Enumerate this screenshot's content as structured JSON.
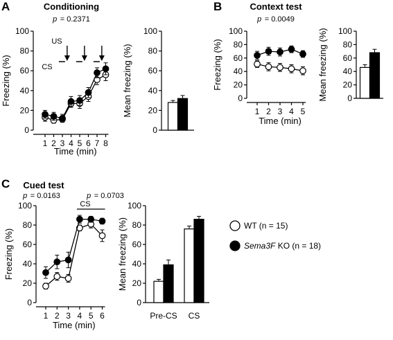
{
  "legend": {
    "wt": "WT (n = 15)",
    "ko_gene": "Sema3F",
    "ko_rest": " KO (n = 18)"
  },
  "series_colors": {
    "wt": "#ffffff",
    "ko": "#000000"
  },
  "chart_data": [
    {
      "panel": "A",
      "title": "Conditioning",
      "type": "line",
      "p_values": [
        {
          "label": "p",
          "value": "= 0.2371"
        }
      ],
      "x": [
        1,
        2,
        3,
        4,
        5,
        6,
        7,
        8
      ],
      "xlabel": "Time (min)",
      "ylabel": "Freezing (%)",
      "ylim": [
        0,
        100
      ],
      "yticks": [
        0,
        20,
        40,
        60,
        80,
        100
      ],
      "annotations": {
        "us": "US",
        "cs": "CS",
        "us_minutes": [
          3,
          5,
          7
        ]
      },
      "series": [
        {
          "name": "WT",
          "values": [
            13,
            10,
            11,
            27,
            27,
            34,
            51,
            56
          ],
          "errors": [
            4,
            3,
            3,
            4,
            5,
            5,
            5,
            6
          ]
        },
        {
          "name": "Sema3F KO",
          "values": [
            16,
            14,
            12,
            29,
            30,
            38,
            58,
            62
          ],
          "errors": [
            4,
            4,
            4,
            5,
            5,
            5,
            5,
            6
          ]
        }
      ]
    },
    {
      "panel": "A-bar",
      "type": "bar",
      "ylabel": "Mean freezing (%)",
      "ylim": [
        0,
        100
      ],
      "yticks": [
        0,
        20,
        40,
        60,
        80,
        100
      ],
      "categories": [
        ""
      ],
      "series": [
        {
          "name": "WT",
          "values": [
            28
          ],
          "errors": [
            2
          ]
        },
        {
          "name": "Sema3F KO",
          "values": [
            32
          ],
          "errors": [
            3
          ]
        }
      ]
    },
    {
      "panel": "B",
      "title": "Context test",
      "type": "line",
      "p_values": [
        {
          "label": "p",
          "value": "= 0.0049"
        }
      ],
      "x": [
        1,
        2,
        3,
        4,
        5
      ],
      "xlabel": "Time (min)",
      "ylabel": "Freezing (%)",
      "ylim": [
        0,
        100
      ],
      "yticks": [
        0,
        20,
        40,
        60,
        80,
        100
      ],
      "series": [
        {
          "name": "WT",
          "values": [
            51,
            47,
            46,
            44,
            41
          ],
          "errors": [
            5,
            6,
            6,
            6,
            6
          ]
        },
        {
          "name": "Sema3F KO",
          "values": [
            64,
            70,
            69,
            73,
            66
          ],
          "errors": [
            6,
            6,
            6,
            5,
            5
          ]
        }
      ]
    },
    {
      "panel": "B-bar",
      "type": "bar",
      "ylabel": "Mean freezing (%)",
      "ylim": [
        0,
        100
      ],
      "yticks": [
        0,
        20,
        40,
        60,
        80,
        100
      ],
      "categories": [
        ""
      ],
      "series": [
        {
          "name": "WT",
          "values": [
            46
          ],
          "errors": [
            4
          ]
        },
        {
          "name": "Sema3F KO",
          "values": [
            68
          ],
          "errors": [
            5
          ]
        }
      ]
    },
    {
      "panel": "C",
      "title": "Cued test",
      "type": "line",
      "p_values": [
        {
          "label": "p",
          "value": "= 0.0163"
        },
        {
          "label": "p",
          "value": "= 0.0703"
        }
      ],
      "x": [
        1,
        2,
        3,
        4,
        5,
        6
      ],
      "xlabel": "Time (min)",
      "ylabel": "Freezing (%)",
      "ylim": [
        0,
        100
      ],
      "yticks": [
        0,
        20,
        40,
        60,
        80,
        100
      ],
      "annotations": {
        "cs": "CS",
        "cs_minutes": [
          4,
          6
        ]
      },
      "series": [
        {
          "name": "WT",
          "values": [
            17,
            27,
            25,
            77,
            81,
            69
          ],
          "errors": [
            3,
            4,
            4,
            3,
            4,
            6
          ]
        },
        {
          "name": "Sema3F KO",
          "values": [
            31,
            42,
            44,
            86,
            86,
            84
          ],
          "errors": [
            6,
            7,
            8,
            4,
            3,
            3
          ]
        }
      ]
    },
    {
      "panel": "C-bar",
      "type": "bar",
      "ylabel": "Mean freezing (%)",
      "ylim": [
        0,
        100
      ],
      "yticks": [
        0,
        20,
        40,
        60,
        80,
        100
      ],
      "categories": [
        "Pre-CS",
        "CS"
      ],
      "series": [
        {
          "name": "WT",
          "values": [
            22,
            76
          ],
          "errors": [
            2,
            3
          ]
        },
        {
          "name": "Sema3F KO",
          "values": [
            39,
            86
          ],
          "errors": [
            5,
            3
          ]
        }
      ]
    }
  ]
}
